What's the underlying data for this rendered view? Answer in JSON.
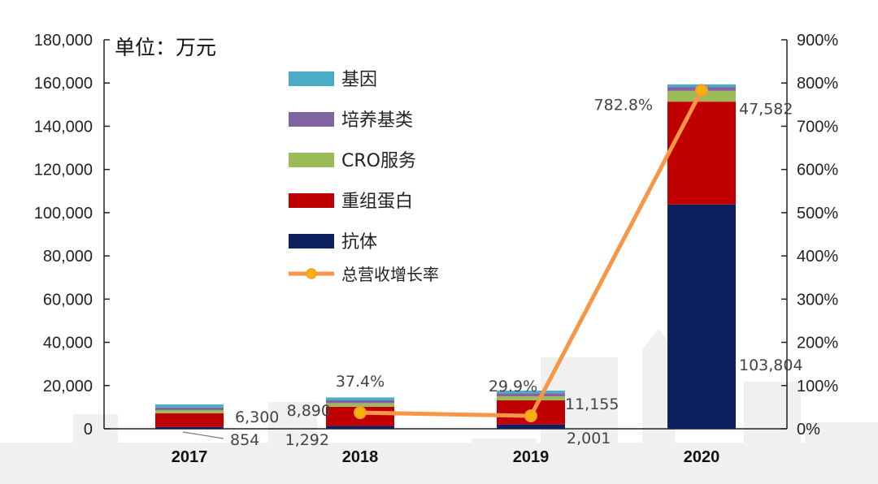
{
  "chart_data": {
    "type": "bar",
    "stacked": true,
    "unit_label": "单位：万元",
    "categories": [
      "2017",
      "2018",
      "2019",
      "2020"
    ],
    "ylim": [
      0,
      180000
    ],
    "y_ticks": [
      "0",
      "20,000",
      "40,000",
      "60,000",
      "80,000",
      "100,000",
      "120,000",
      "140,000",
      "160,000",
      "180,000"
    ],
    "y2lim": [
      0,
      9
    ],
    "y2_ticks": [
      "0%",
      "100%",
      "200%",
      "300%",
      "400%",
      "500%",
      "600%",
      "700%",
      "800%",
      "900%"
    ],
    "series": [
      {
        "name": "抗体",
        "color": "#0d1f5c",
        "values": [
          854,
          1292,
          2001,
          103804
        ]
      },
      {
        "name": "重组蛋白",
        "color": "#c00000",
        "values": [
          6300,
          8890,
          11155,
          47582
        ]
      },
      {
        "name": "CRO服务",
        "color": "#9bbb59",
        "values": [
          1500,
          1700,
          1900,
          5000
        ]
      },
      {
        "name": "培养基类",
        "color": "#8064a2",
        "values": [
          1200,
          1300,
          1400,
          1800
        ]
      },
      {
        "name": "基因",
        "color": "#4bacc6",
        "values": [
          1400,
          1300,
          1200,
          1200
        ]
      }
    ],
    "line_series": {
      "name": "总营收增长率",
      "color": "#f79646",
      "marker_color": "#f4b400",
      "x_categories": [
        "2018",
        "2019",
        "2020"
      ],
      "values": [
        0.374,
        0.299,
        7.828
      ],
      "labels": [
        "37.4%",
        "29.9%",
        "782.8%"
      ]
    },
    "data_labels": [
      {
        "category": "2017",
        "series": "重组蛋白",
        "text": "6,300"
      },
      {
        "category": "2017",
        "series": "抗体",
        "text": "854"
      },
      {
        "category": "2018",
        "series": "重组蛋白",
        "text": "8,890"
      },
      {
        "category": "2018",
        "series": "抗体",
        "text": "1,292"
      },
      {
        "category": "2019",
        "series": "重组蛋白",
        "text": "11,155"
      },
      {
        "category": "2019",
        "series": "抗体",
        "text": "2,001"
      },
      {
        "category": "2020",
        "series": "重组蛋白",
        "text": "47,582"
      },
      {
        "category": "2020",
        "series": "抗体",
        "text": "103,804"
      }
    ],
    "legend": [
      "基因",
      "培养基类",
      "CRO服务",
      "重组蛋白",
      "抗体",
      "总营收增长率"
    ],
    "legend_position": "top-left"
  }
}
